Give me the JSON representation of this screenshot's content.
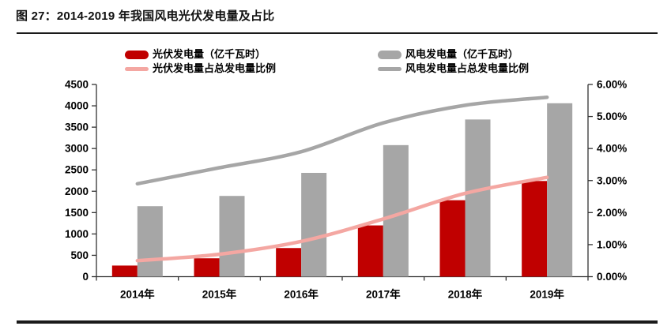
{
  "header": {
    "title": "图 27：2014-2019 年我国风电光伏发电量及占比"
  },
  "colors": {
    "solar_bar": "#C00000",
    "wind_bar": "#A6A6A6",
    "solar_line": "#F4A7A2",
    "wind_line": "#A6A6A6",
    "axis": "#333333",
    "divider": "#1a1a1a"
  },
  "legend": {
    "items": [
      {
        "label": "光伏发电量（亿千瓦时）",
        "swatch": "bar",
        "color": "#C00000"
      },
      {
        "label": "风电发电量（亿千瓦时）",
        "swatch": "bar",
        "color": "#A6A6A6"
      },
      {
        "label": "光伏发电量占总发电量比例",
        "swatch": "line",
        "color": "#F4A7A2"
      },
      {
        "label": "风电发电量占总发电量比例",
        "swatch": "line",
        "color": "#A6A6A6"
      }
    ]
  },
  "chart_data": {
    "type": "combo-bar-line",
    "categories": [
      "2014年",
      "2015年",
      "2016年",
      "2017年",
      "2018年",
      "2019年"
    ],
    "bar_series": [
      {
        "name": "光伏发电量（亿千瓦时）",
        "axis": "left",
        "color": "#C00000",
        "values": [
          260,
          430,
          670,
          1200,
          1790,
          2240
        ]
      },
      {
        "name": "风电发电量（亿千瓦时）",
        "axis": "left",
        "color": "#A6A6A6",
        "values": [
          1650,
          1890,
          2430,
          3080,
          3680,
          4060
        ]
      }
    ],
    "line_series": [
      {
        "name": "光伏发电量占总发电量比例",
        "axis": "right",
        "color": "#F4A7A2",
        "values": [
          0.5,
          0.7,
          1.1,
          1.8,
          2.6,
          3.1
        ]
      },
      {
        "name": "风电发电量占总发电量比例",
        "axis": "right",
        "color": "#A6A6A6",
        "values": [
          2.9,
          3.4,
          3.9,
          4.8,
          5.35,
          5.6
        ]
      }
    ],
    "left_axis": {
      "min": 0,
      "max": 4500,
      "step": 500
    },
    "right_axis": {
      "min": 0,
      "max": 6,
      "step": 1,
      "decimals": 2,
      "suffix": "%"
    },
    "grid": false,
    "legend_position": "top"
  }
}
